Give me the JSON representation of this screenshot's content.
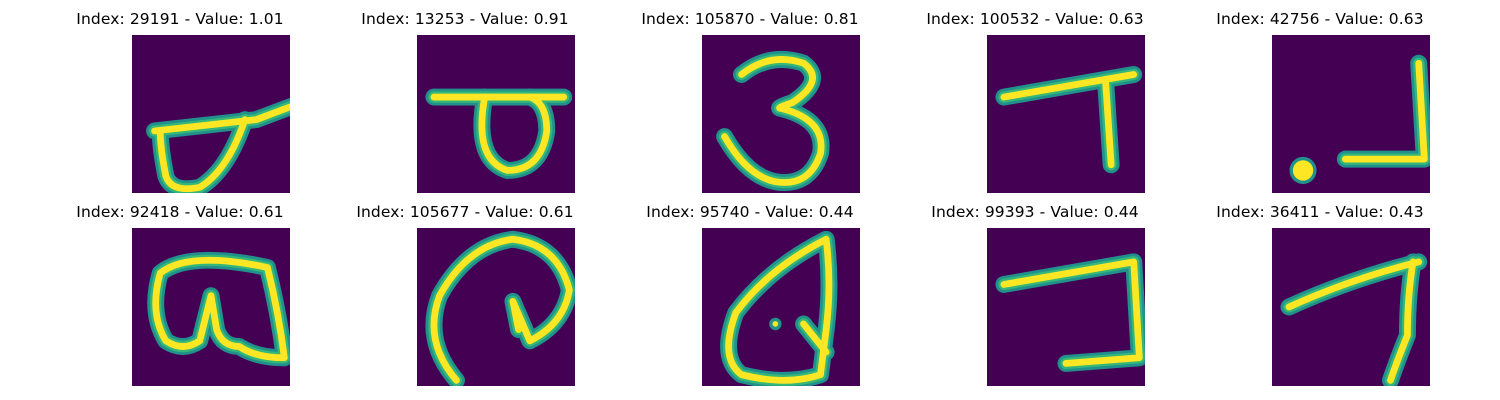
{
  "colors": {
    "background": "#440154",
    "stroke_core": "#fde725",
    "stroke_edge": "#21918c",
    "stroke_mid": "#35b779"
  },
  "images": [
    {
      "title": "Index: 29191 - Value: 1.01",
      "glyph": "dha-shape"
    },
    {
      "title": "Index: 13253 - Value: 0.91",
      "glyph": "pa-shape"
    },
    {
      "title": "Index: 105870 - Value: 0.81",
      "glyph": "three-shape"
    },
    {
      "title": "Index: 100532 - Value: 0.63",
      "glyph": "seven-shape"
    },
    {
      "title": "Index: 42756 - Value: 0.63",
      "glyph": "hook-with-dot-shape"
    },
    {
      "title": "Index: 92418 - Value: 0.61",
      "glyph": "ba-shape"
    },
    {
      "title": "Index: 105677 - Value: 0.61",
      "glyph": "loop-shape"
    },
    {
      "title": "Index: 95740 - Value: 0.44",
      "glyph": "teardrop-shape"
    },
    {
      "title": "Index: 99393 - Value: 0.44",
      "glyph": "bracket-shape"
    },
    {
      "title": "Index: 36411 - Value: 0.43",
      "glyph": "seven-curved-shape"
    }
  ]
}
